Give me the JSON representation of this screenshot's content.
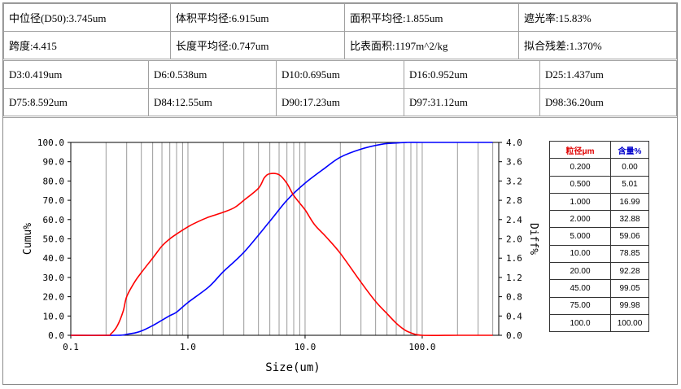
{
  "stats_row1": [
    {
      "text": "中位径(D50):3.745um"
    },
    {
      "text": "体积平均径:6.915um"
    },
    {
      "text": "面积平均径:1.855um"
    },
    {
      "text": "遮光率:15.83%"
    }
  ],
  "stats_row2": [
    {
      "text": "跨度:4.415"
    },
    {
      "text": "长度平均径:0.747um"
    },
    {
      "text": "比表面积:1197m^2/kg"
    },
    {
      "text": "拟合残差:1.370%"
    }
  ],
  "d_row1": [
    {
      "text": "D3:0.419um"
    },
    {
      "text": "D6:0.538um"
    },
    {
      "text": "D10:0.695um"
    },
    {
      "text": "D16:0.952um"
    },
    {
      "text": "D25:1.437um"
    }
  ],
  "d_row2": [
    {
      "text": "D75:8.592um"
    },
    {
      "text": "D84:12.55um"
    },
    {
      "text": "D90:17.23um"
    },
    {
      "text": "D97:31.12um"
    },
    {
      "text": "D98:36.20um"
    }
  ],
  "size_table": {
    "headers": [
      "粒径μm",
      "含量%"
    ],
    "rows": [
      [
        "0.200",
        "0.00"
      ],
      [
        "0.500",
        "5.01"
      ],
      [
        "1.000",
        "16.99"
      ],
      [
        "2.000",
        "32.88"
      ],
      [
        "5.000",
        "59.06"
      ],
      [
        "10.00",
        "78.85"
      ],
      [
        "20.00",
        "92.28"
      ],
      [
        "45.00",
        "99.05"
      ],
      [
        "75.00",
        "99.98"
      ],
      [
        "100.0",
        "100.00"
      ]
    ]
  },
  "chart_data": {
    "type": "line",
    "title": "",
    "xlabel": "Size(um)",
    "ylabel_left": "Cumu%",
    "ylabel_right": "Diff%",
    "x_scale": "log",
    "xlim": [
      0.1,
      450
    ],
    "ylim_left": [
      0,
      100
    ],
    "ylim_right": [
      0,
      4
    ],
    "x_tick_labels": [
      "0.1",
      "1.0",
      "10.0",
      "100.0"
    ],
    "y_left_tick_labels": [
      "0.0",
      "10.0",
      "20.0",
      "30.0",
      "40.0",
      "50.0",
      "60.0",
      "70.0",
      "80.0",
      "90.0",
      "100.0"
    ],
    "y_right_tick_labels": [
      "0.0",
      "0.4",
      "0.8",
      "1.2",
      "1.6",
      "2.0",
      "2.4",
      "2.8",
      "3.2",
      "3.6",
      "4.0"
    ],
    "grid": "vertical",
    "series": [
      {
        "axis": "left",
        "color": "#0000ff",
        "x": [
          0.1,
          0.25,
          0.3,
          0.35,
          0.4,
          0.5,
          0.6,
          0.7,
          0.8,
          1.0,
          1.5,
          2.0,
          3.0,
          5.0,
          7.0,
          10.0,
          15.0,
          20.0,
          30.0,
          45.0,
          60.0,
          75.0,
          100.0,
          200.0,
          400.0
        ],
        "y": [
          0,
          0,
          0.5,
          1.2,
          2.2,
          5.0,
          7.8,
          10.2,
          12.0,
          17.0,
          25.0,
          32.9,
          43.0,
          59.1,
          70.0,
          78.9,
          87.0,
          92.3,
          96.5,
          99.05,
          99.7,
          99.98,
          100,
          100,
          100
        ]
      },
      {
        "axis": "right",
        "color": "#ff0000",
        "x": [
          0.1,
          0.2,
          0.22,
          0.25,
          0.28,
          0.3,
          0.35,
          0.4,
          0.5,
          0.6,
          0.7,
          0.8,
          1.0,
          1.2,
          1.5,
          2.0,
          2.5,
          3.0,
          4.0,
          4.5,
          5.0,
          6.0,
          7.0,
          8.0,
          10.0,
          12.0,
          15.0,
          20.0,
          30.0,
          40.0,
          50.0,
          60.0,
          70.0,
          80.0,
          100.0,
          200.0,
          400.0
        ],
        "y": [
          0,
          0,
          0.03,
          0.2,
          0.5,
          0.8,
          1.1,
          1.3,
          1.6,
          1.85,
          2.0,
          2.1,
          2.25,
          2.35,
          2.45,
          2.55,
          2.65,
          2.8,
          3.05,
          3.27,
          3.35,
          3.33,
          3.15,
          2.9,
          2.6,
          2.3,
          2.05,
          1.7,
          1.1,
          0.7,
          0.45,
          0.25,
          0.12,
          0.05,
          0,
          0,
          0
        ]
      }
    ]
  }
}
